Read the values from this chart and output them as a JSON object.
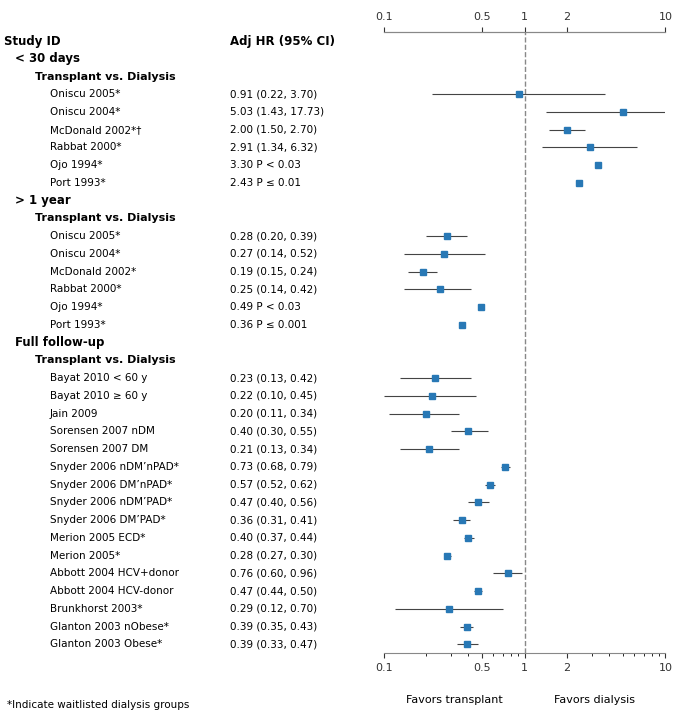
{
  "title_col1": "Study ID",
  "title_col2": "Adj HR (95% CI)",
  "footnote": "*Indicate waitlisted dialysis groups",
  "xlabel_left": "Favors transplant",
  "xlabel_right": "Favors dialysis",
  "xmin": 0.1,
  "xmax": 10,
  "xticks": [
    0.1,
    0.5,
    1,
    2,
    10
  ],
  "ref_line": 1.0,
  "dot_color": "#2878b5",
  "line_color": "#444444",
  "groups": [
    {
      "label": "< 30 days",
      "subgroups": [
        {
          "label": "Transplant vs. Dialysis",
          "studies": [
            {
              "name": "Oniscu 2005*",
              "hr": 0.91,
              "lo": 0.22,
              "hi": 3.7,
              "ci_text": "0.91 (0.22, 3.70)",
              "has_ci": true
            },
            {
              "name": "Oniscu 2004*",
              "hr": 5.03,
              "lo": 1.43,
              "hi": 17.73,
              "ci_text": "5.03 (1.43, 17.73)",
              "has_ci": true
            },
            {
              "name": "McDonald 2002*†",
              "hr": 2.0,
              "lo": 1.5,
              "hi": 2.7,
              "ci_text": "2.00 (1.50, 2.70)",
              "has_ci": true
            },
            {
              "name": "Rabbat 2000*",
              "hr": 2.91,
              "lo": 1.34,
              "hi": 6.32,
              "ci_text": "2.91 (1.34, 6.32)",
              "has_ci": true
            },
            {
              "name": "Ojo 1994*",
              "hr": 3.3,
              "lo": null,
              "hi": null,
              "ci_text": "3.30 P < 0.03",
              "has_ci": false
            },
            {
              "name": "Port 1993*",
              "hr": 2.43,
              "lo": null,
              "hi": null,
              "ci_text": "2.43 P ≤ 0.01",
              "has_ci": false
            }
          ]
        }
      ]
    },
    {
      "label": "> 1 year",
      "subgroups": [
        {
          "label": "Transplant vs. Dialysis",
          "studies": [
            {
              "name": "Oniscu 2005*",
              "hr": 0.28,
              "lo": 0.2,
              "hi": 0.39,
              "ci_text": "0.28 (0.20, 0.39)",
              "has_ci": true
            },
            {
              "name": "Oniscu 2004*",
              "hr": 0.27,
              "lo": 0.14,
              "hi": 0.52,
              "ci_text": "0.27 (0.14, 0.52)",
              "has_ci": true
            },
            {
              "name": "McDonald 2002*",
              "hr": 0.19,
              "lo": 0.15,
              "hi": 0.24,
              "ci_text": "0.19 (0.15, 0.24)",
              "has_ci": true
            },
            {
              "name": "Rabbat 2000*",
              "hr": 0.25,
              "lo": 0.14,
              "hi": 0.42,
              "ci_text": "0.25 (0.14, 0.42)",
              "has_ci": true
            },
            {
              "name": "Ojo 1994*",
              "hr": 0.49,
              "lo": null,
              "hi": null,
              "ci_text": "0.49 P < 0.03",
              "has_ci": false
            },
            {
              "name": "Port 1993*",
              "hr": 0.36,
              "lo": null,
              "hi": null,
              "ci_text": "0.36 P ≤ 0.001",
              "has_ci": false
            }
          ]
        }
      ]
    },
    {
      "label": "Full follow-up",
      "subgroups": [
        {
          "label": "Transplant vs. Dialysis",
          "studies": [
            {
              "name": "Bayat 2010 < 60 y",
              "hr": 0.23,
              "lo": 0.13,
              "hi": 0.42,
              "ci_text": "0.23 (0.13, 0.42)",
              "has_ci": true
            },
            {
              "name": "Bayat 2010 ≥ 60 y",
              "hr": 0.22,
              "lo": 0.1,
              "hi": 0.45,
              "ci_text": "0.22 (0.10, 0.45)",
              "has_ci": true
            },
            {
              "name": "Jain 2009",
              "hr": 0.2,
              "lo": 0.11,
              "hi": 0.34,
              "ci_text": "0.20 (0.11, 0.34)",
              "has_ci": true
            },
            {
              "name": "Sorensen 2007 nDM",
              "hr": 0.4,
              "lo": 0.3,
              "hi": 0.55,
              "ci_text": "0.40 (0.30, 0.55)",
              "has_ci": true
            },
            {
              "name": "Sorensen 2007 DM",
              "hr": 0.21,
              "lo": 0.13,
              "hi": 0.34,
              "ci_text": "0.21 (0.13, 0.34)",
              "has_ci": true
            },
            {
              "name": "Snyder 2006 nDM’nPAD*",
              "hr": 0.73,
              "lo": 0.68,
              "hi": 0.79,
              "ci_text": "0.73 (0.68, 0.79)",
              "has_ci": true
            },
            {
              "name": "Snyder 2006 DM’nPAD*",
              "hr": 0.57,
              "lo": 0.52,
              "hi": 0.62,
              "ci_text": "0.57 (0.52, 0.62)",
              "has_ci": true
            },
            {
              "name": "Snyder 2006 nDM’PAD*",
              "hr": 0.47,
              "lo": 0.4,
              "hi": 0.56,
              "ci_text": "0.47 (0.40, 0.56)",
              "has_ci": true
            },
            {
              "name": "Snyder 2006 DM’PAD*",
              "hr": 0.36,
              "lo": 0.31,
              "hi": 0.41,
              "ci_text": "0.36 (0.31, 0.41)",
              "has_ci": true
            },
            {
              "name": "Merion 2005 ECD*",
              "hr": 0.4,
              "lo": 0.37,
              "hi": 0.44,
              "ci_text": "0.40 (0.37, 0.44)",
              "has_ci": true
            },
            {
              "name": "Merion 2005*",
              "hr": 0.28,
              "lo": 0.27,
              "hi": 0.3,
              "ci_text": "0.28 (0.27, 0.30)",
              "has_ci": true
            },
            {
              "name": "Abbott 2004 HCV+donor",
              "hr": 0.76,
              "lo": 0.6,
              "hi": 0.96,
              "ci_text": "0.76 (0.60, 0.96)",
              "has_ci": true
            },
            {
              "name": "Abbott 2004 HCV-donor",
              "hr": 0.47,
              "lo": 0.44,
              "hi": 0.5,
              "ci_text": "0.47 (0.44, 0.50)",
              "has_ci": true
            },
            {
              "name": "Brunkhorst 2003*",
              "hr": 0.29,
              "lo": 0.12,
              "hi": 0.7,
              "ci_text": "0.29 (0.12, 0.70)",
              "has_ci": true
            },
            {
              "name": "Glanton 2003 nObese*",
              "hr": 0.39,
              "lo": 0.35,
              "hi": 0.43,
              "ci_text": "0.39 (0.35, 0.43)",
              "has_ci": true
            },
            {
              "name": "Glanton 2003 Obese*",
              "hr": 0.39,
              "lo": 0.33,
              "hi": 0.47,
              "ci_text": "0.39 (0.33, 0.47)",
              "has_ci": true
            }
          ]
        }
      ]
    }
  ]
}
